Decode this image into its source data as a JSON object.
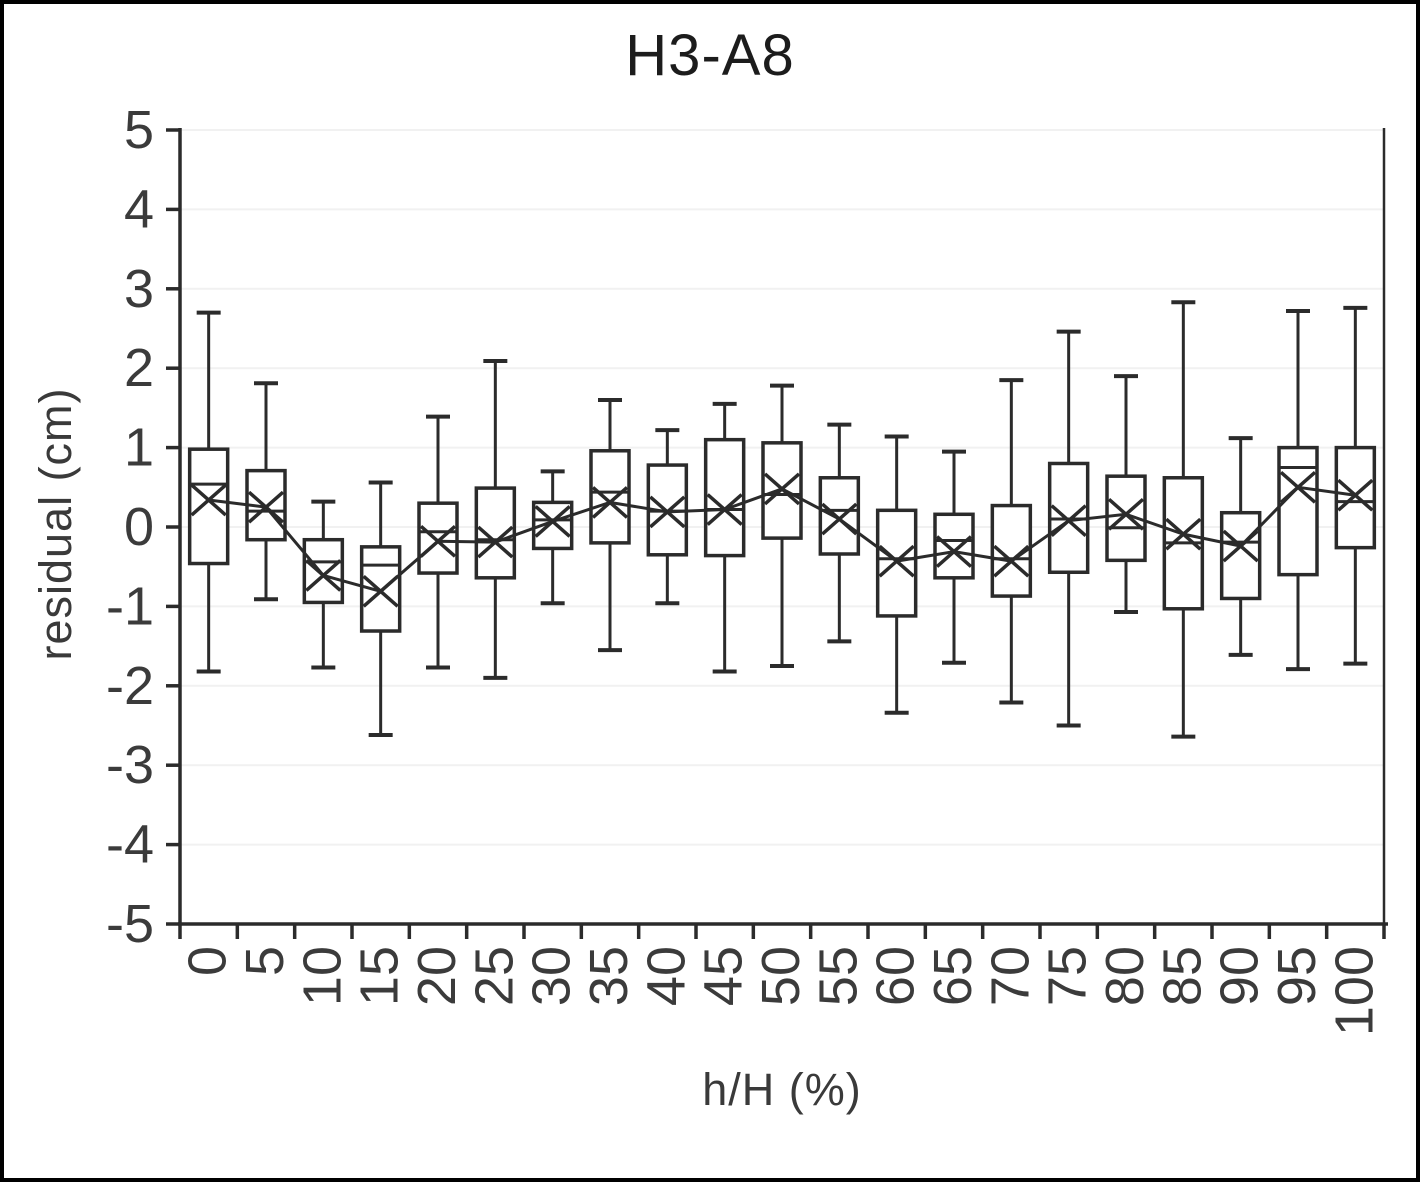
{
  "title": "H3-A8",
  "colors": {
    "stroke": "#2b2b2b",
    "grid": "#f1f1f1",
    "text": "#3b3b3b",
    "background": "#ffffff",
    "frame": "#000000"
  },
  "chart_data": {
    "type": "boxplot",
    "title": "H3-A8",
    "xlabel": "h/H (%)",
    "ylabel": "residual (cm)",
    "ylim": [
      -5,
      5
    ],
    "y_ticks": [
      5,
      4,
      3,
      2,
      1,
      0,
      -1,
      -2,
      -3,
      -4,
      -5
    ],
    "grid": "horizontal-faint",
    "legend": "none",
    "mean_marker": "x",
    "mean_line": true,
    "categories": [
      "0",
      "5",
      "10",
      "15",
      "20",
      "25",
      "30",
      "35",
      "40",
      "45",
      "50",
      "55",
      "60",
      "65",
      "70",
      "75",
      "80",
      "85",
      "90",
      "95",
      "100"
    ],
    "boxes": [
      {
        "category": "0",
        "whisker_low": -1.82,
        "q1": -0.46,
        "median": 0.54,
        "mean": 0.34,
        "q3": 0.98,
        "whisker_high": 2.7
      },
      {
        "category": "5",
        "whisker_low": -0.91,
        "q1": -0.16,
        "median": 0.2,
        "mean": 0.25,
        "q3": 0.71,
        "whisker_high": 1.81
      },
      {
        "category": "10",
        "whisker_low": -1.77,
        "q1": -0.95,
        "median": -0.44,
        "mean": -0.61,
        "q3": -0.16,
        "whisker_high": 0.32
      },
      {
        "category": "15",
        "whisker_low": -2.62,
        "q1": -1.31,
        "median": -0.48,
        "mean": -0.81,
        "q3": -0.25,
        "whisker_high": 0.56
      },
      {
        "category": "20",
        "whisker_low": -1.77,
        "q1": -0.58,
        "median": -0.06,
        "mean": -0.18,
        "q3": 0.3,
        "whisker_high": 1.39
      },
      {
        "category": "25",
        "whisker_low": -1.9,
        "q1": -0.64,
        "median": -0.16,
        "mean": -0.19,
        "q3": 0.49,
        "whisker_high": 2.09
      },
      {
        "category": "30",
        "whisker_low": -0.96,
        "q1": -0.27,
        "median": 0.09,
        "mean": 0.07,
        "q3": 0.31,
        "whisker_high": 0.7
      },
      {
        "category": "35",
        "whisker_low": -1.55,
        "q1": -0.2,
        "median": 0.44,
        "mean": 0.31,
        "q3": 0.96,
        "whisker_high": 1.6
      },
      {
        "category": "40",
        "whisker_low": -0.96,
        "q1": -0.35,
        "median": 0.2,
        "mean": 0.19,
        "q3": 0.78,
        "whisker_high": 1.22
      },
      {
        "category": "45",
        "whisker_low": -1.82,
        "q1": -0.36,
        "median": 0.22,
        "mean": 0.22,
        "q3": 1.1,
        "whisker_high": 1.55
      },
      {
        "category": "50",
        "whisker_low": -1.75,
        "q1": -0.14,
        "median": 0.41,
        "mean": 0.48,
        "q3": 1.06,
        "whisker_high": 1.78
      },
      {
        "category": "55",
        "whisker_low": -1.44,
        "q1": -0.34,
        "median": 0.21,
        "mean": 0.1,
        "q3": 0.62,
        "whisker_high": 1.29
      },
      {
        "category": "60",
        "whisker_low": -2.34,
        "q1": -1.12,
        "median": -0.4,
        "mean": -0.43,
        "q3": 0.21,
        "whisker_high": 1.14
      },
      {
        "category": "65",
        "whisker_low": -1.71,
        "q1": -0.64,
        "median": -0.17,
        "mean": -0.31,
        "q3": 0.16,
        "whisker_high": 0.95
      },
      {
        "category": "70",
        "whisker_low": -2.21,
        "q1": -0.87,
        "median": -0.4,
        "mean": -0.43,
        "q3": 0.27,
        "whisker_high": 1.85
      },
      {
        "category": "75",
        "whisker_low": -2.5,
        "q1": -0.57,
        "median": 0.1,
        "mean": 0.08,
        "q3": 0.8,
        "whisker_high": 2.46
      },
      {
        "category": "80",
        "whisker_low": -1.07,
        "q1": -0.42,
        "median": -0.01,
        "mean": 0.16,
        "q3": 0.64,
        "whisker_high": 1.9
      },
      {
        "category": "85",
        "whisker_low": -2.64,
        "q1": -1.03,
        "median": -0.2,
        "mean": -0.09,
        "q3": 0.62,
        "whisker_high": 2.83
      },
      {
        "category": "90",
        "whisker_low": -1.61,
        "q1": -0.9,
        "median": -0.19,
        "mean": -0.24,
        "q3": 0.18,
        "whisker_high": 1.12
      },
      {
        "category": "95",
        "whisker_low": -1.79,
        "q1": -0.6,
        "median": 0.75,
        "mean": 0.5,
        "q3": 1.0,
        "whisker_high": 2.72
      },
      {
        "category": "100",
        "whisker_low": -1.72,
        "q1": -0.26,
        "median": 0.32,
        "mean": 0.4,
        "q3": 1.0,
        "whisker_high": 2.76
      }
    ]
  }
}
